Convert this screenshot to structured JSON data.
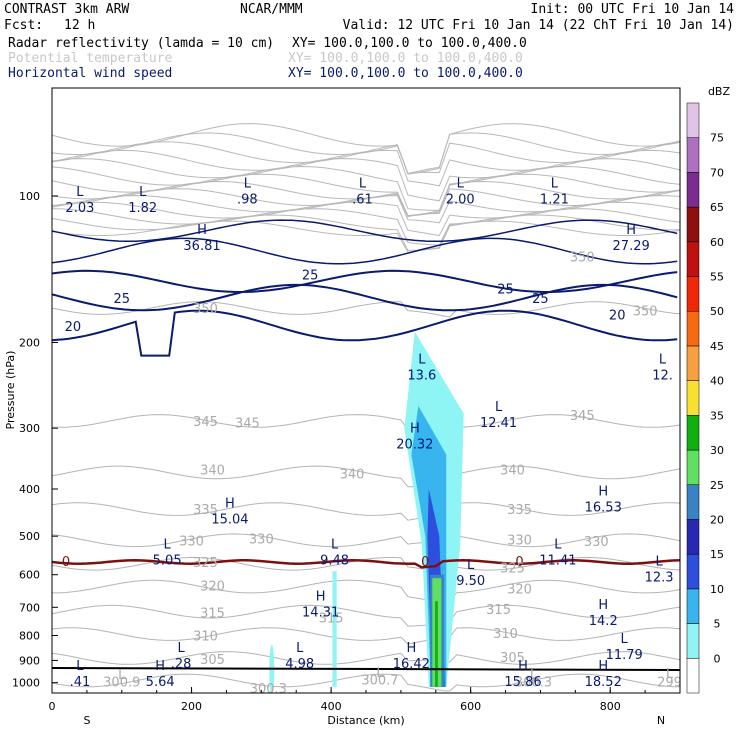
{
  "header": {
    "model": "CONTRAST  3km ARW",
    "org": "NCAR/MMM",
    "init": "Init: 00 UTC Fri 10 Jan 14",
    "fcst_label": "Fcst:",
    "fcst_value": "12 h",
    "valid": "Valid: 12 UTC Fri 10 Jan 14 (22 ChT Fri 10 Jan 14)",
    "fields": [
      {
        "name": "Radar reflectivity (lamda = 10 cm)",
        "xy": "XY= 100.0,100.0 to 100.0,400.0",
        "color": "#000000"
      },
      {
        "name": "Potential temperature",
        "xy": "XY= 100.0,100.0 to 100.0,400.0",
        "color": "#c8c8c8"
      },
      {
        "name": "Horizontal wind speed",
        "xy": "XY= 100.0,100.0 to 100.0,400.0",
        "color": "#0a1a6e"
      }
    ]
  },
  "colorbar": {
    "unit": "dBZ",
    "levels": [
      "0",
      "5",
      "10",
      "15",
      "20",
      "25",
      "30",
      "35",
      "40",
      "45",
      "50",
      "55",
      "60",
      "65",
      "70",
      "75"
    ],
    "colors": [
      "#ffffff",
      "#8ef4f4",
      "#38b4ee",
      "#2e4ede",
      "#2828b0",
      "#3a82c6",
      "#60e060",
      "#10b010",
      "#f8e030",
      "#f8a040",
      "#f86a10",
      "#f02808",
      "#c01010",
      "#901010",
      "#7c2c90",
      "#b070c0",
      "#e0c4e8"
    ]
  },
  "chart_data": {
    "type": "cross-section contour",
    "x_axis": {
      "label": "Distance (km)",
      "ticks": [
        "0",
        "200",
        "400",
        "600",
        "800"
      ],
      "range": [
        0,
        900
      ],
      "left_end": "S",
      "right_end": "N"
    },
    "y_axis": {
      "label": "Pressure (hPa)",
      "ticks": [
        "100",
        "200",
        "300",
        "400",
        "500",
        "600",
        "700",
        "800",
        "900",
        "1000"
      ],
      "range": [
        60,
        1050
      ],
      "scale": "log"
    },
    "theta_labels": [
      {
        "text": "350",
        "x": 760,
        "p": 133
      },
      {
        "text": "350",
        "x": 220,
        "p": 170
      },
      {
        "text": "350",
        "x": 850,
        "p": 172
      },
      {
        "text": "345",
        "x": 220,
        "p": 290
      },
      {
        "text": "345",
        "x": 280,
        "p": 292
      },
      {
        "text": "345",
        "x": 760,
        "p": 282
      },
      {
        "text": "340",
        "x": 230,
        "p": 365
      },
      {
        "text": "340",
        "x": 430,
        "p": 372
      },
      {
        "text": "340",
        "x": 660,
        "p": 365
      },
      {
        "text": "335",
        "x": 220,
        "p": 440
      },
      {
        "text": "335",
        "x": 670,
        "p": 440
      },
      {
        "text": "330",
        "x": 200,
        "p": 510
      },
      {
        "text": "330",
        "x": 300,
        "p": 505
      },
      {
        "text": "330",
        "x": 670,
        "p": 508
      },
      {
        "text": "330",
        "x": 780,
        "p": 512
      },
      {
        "text": "325",
        "x": 220,
        "p": 565
      },
      {
        "text": "325",
        "x": 660,
        "p": 580
      },
      {
        "text": "320",
        "x": 230,
        "p": 632
      },
      {
        "text": "320",
        "x": 670,
        "p": 640
      },
      {
        "text": "315",
        "x": 230,
        "p": 718
      },
      {
        "text": "315",
        "x": 400,
        "p": 735
      },
      {
        "text": "315",
        "x": 640,
        "p": 705
      },
      {
        "text": "310",
        "x": 220,
        "p": 800
      },
      {
        "text": "310",
        "x": 650,
        "p": 790
      },
      {
        "text": "305",
        "x": 230,
        "p": 895
      },
      {
        "text": "305",
        "x": 660,
        "p": 885
      },
      {
        "text": "300.3",
        "x": 310,
        "p": 1025
      },
      {
        "text": "300.7",
        "x": 470,
        "p": 985
      },
      {
        "text": "300.9",
        "x": 100,
        "p": 995
      },
      {
        "text": "300.3",
        "x": 690,
        "p": 995
      },
      {
        "text": "299",
        "x": 885,
        "p": 995
      }
    ],
    "theta_markers": [
      {
        "text": "L",
        "x": 100,
        "p": 960
      },
      {
        "text": "L",
        "x": 470,
        "p": 950
      },
      {
        "text": "L",
        "x": 690,
        "p": 960
      },
      {
        "text": "L",
        "x": 885,
        "p": 955
      }
    ],
    "wind_contour_labels": [
      {
        "text": "25",
        "x": 370,
        "p": 145
      },
      {
        "text": "25",
        "x": 650,
        "p": 155
      },
      {
        "text": "25",
        "x": 700,
        "p": 162
      },
      {
        "text": "25",
        "x": 100,
        "p": 162
      },
      {
        "text": "20",
        "x": 30,
        "p": 185
      },
      {
        "text": "20",
        "x": 810,
        "p": 175
      }
    ],
    "wind_extrema": [
      {
        "type": "L",
        "value": "2.03",
        "x": 40,
        "p": 102
      },
      {
        "type": "L",
        "value": "1.82",
        "x": 130,
        "p": 102
      },
      {
        "type": "L",
        "value": ".98",
        "x": 280,
        "p": 98
      },
      {
        "type": "L",
        "value": ".61",
        "x": 445,
        "p": 98
      },
      {
        "type": "L",
        "value": "2.00",
        "x": 585,
        "p": 98
      },
      {
        "type": "L",
        "value": "1.21",
        "x": 720,
        "p": 98
      },
      {
        "type": "H",
        "value": "36.81",
        "x": 215,
        "p": 122
      },
      {
        "type": "H",
        "value": "27.29",
        "x": 830,
        "p": 122
      },
      {
        "type": "L",
        "value": "13.6",
        "x": 530,
        "p": 225
      },
      {
        "type": "L",
        "value": "12.41",
        "x": 640,
        "p": 282
      },
      {
        "type": "L",
        "value": "12.",
        "x": 875,
        "p": 225
      },
      {
        "type": "H",
        "value": "20.32",
        "x": 520,
        "p": 312
      },
      {
        "type": "H",
        "value": "16.53",
        "x": 790,
        "p": 420
      },
      {
        "type": "H",
        "value": "15.04",
        "x": 255,
        "p": 445
      },
      {
        "type": "L",
        "value": "5.05",
        "x": 165,
        "p": 540
      },
      {
        "type": "L",
        "value": "9.48",
        "x": 405,
        "p": 540
      },
      {
        "type": "L",
        "value": "11.41",
        "x": 725,
        "p": 540
      },
      {
        "type": "L",
        "value": "9.50",
        "x": 600,
        "p": 595
      },
      {
        "type": "L",
        "value": "12.3",
        "x": 870,
        "p": 585
      },
      {
        "type": "H",
        "value": "14.31",
        "x": 385,
        "p": 690
      },
      {
        "type": "H",
        "value": "14.2",
        "x": 790,
        "p": 720
      },
      {
        "type": "L",
        "value": "11.79",
        "x": 820,
        "p": 845
      },
      {
        "type": "L",
        "value": ".28",
        "x": 185,
        "p": 882
      },
      {
        "type": "L",
        "value": "4.98",
        "x": 355,
        "p": 882
      },
      {
        "type": "H",
        "value": "16.42",
        "x": 515,
        "p": 882
      },
      {
        "type": "L",
        "value": ".41",
        "x": 40,
        "p": 960
      },
      {
        "type": "H",
        "value": "5.64",
        "x": 155,
        "p": 960
      },
      {
        "type": "H",
        "value": "15.86",
        "x": 675,
        "p": 960
      },
      {
        "type": "H",
        "value": "18.52",
        "x": 790,
        "p": 960
      }
    ],
    "freezing_line": {
      "label": "0",
      "color": "#7a1010",
      "p": 565
    },
    "reflectivity_column": {
      "x_range": [
        540,
        565
      ],
      "p_top": 190,
      "p_bottom": 1020
    }
  }
}
